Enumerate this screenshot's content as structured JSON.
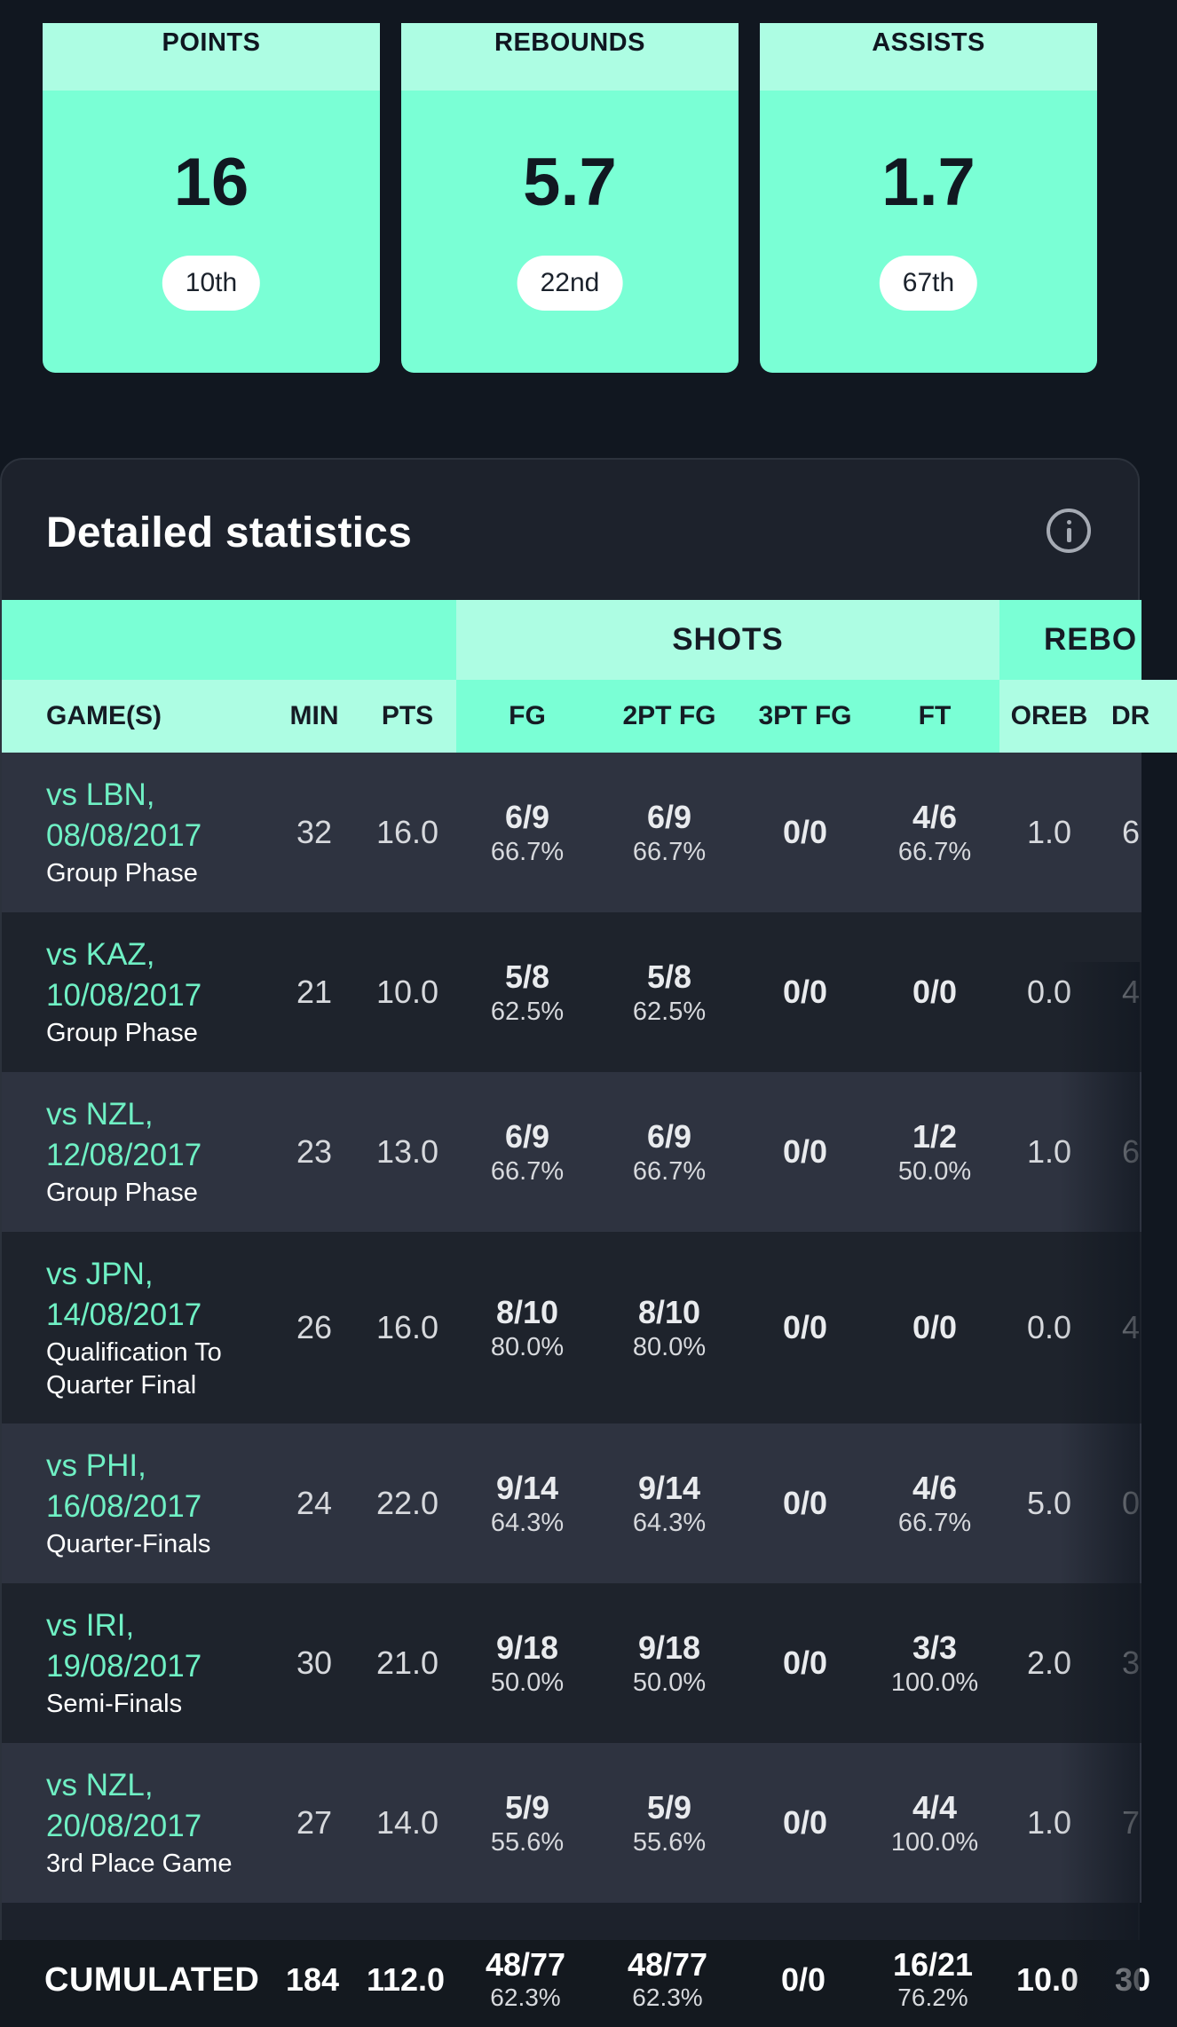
{
  "cards": [
    {
      "label": "POINTS",
      "value": "16",
      "rank": "10th"
    },
    {
      "label": "REBOUNDS",
      "value": "5.7",
      "rank": "22nd"
    },
    {
      "label": "ASSISTS",
      "value": "1.7",
      "rank": "67th"
    }
  ],
  "panel": {
    "title": "Detailed statistics",
    "info_icon": "info-circle-icon"
  },
  "table": {
    "groups": {
      "shots": "SHOTS",
      "rebounds": "REBO"
    },
    "headers": {
      "game": "GAME(S)",
      "min": "MIN",
      "pts": "PTS",
      "fg": "FG",
      "fg2": "2PT FG",
      "fg3": "3PT FG",
      "ft": "FT",
      "oreb": "OREB",
      "dreb": "DR"
    },
    "rows": [
      {
        "opp": "vs LBN,",
        "date": "08/08/2017",
        "phase": "Group Phase",
        "phase2": "",
        "min": "32",
        "pts": "16.0",
        "fg": "6/9",
        "fg_pct": "66.7%",
        "fg2": "6/9",
        "fg2_pct": "66.7%",
        "fg3": "0/0",
        "ft": "4/6",
        "ft_pct": "66.7%",
        "oreb": "1.0",
        "dreb": "6"
      },
      {
        "opp": "vs KAZ,",
        "date": "10/08/2017",
        "phase": "Group Phase",
        "phase2": "",
        "min": "21",
        "pts": "10.0",
        "fg": "5/8",
        "fg_pct": "62.5%",
        "fg2": "5/8",
        "fg2_pct": "62.5%",
        "fg3": "0/0",
        "ft": "0/0",
        "ft_pct": "",
        "oreb": "0.0",
        "dreb": "4"
      },
      {
        "opp": "vs NZL,",
        "date": "12/08/2017",
        "phase": "Group Phase",
        "phase2": "",
        "min": "23",
        "pts": "13.0",
        "fg": "6/9",
        "fg_pct": "66.7%",
        "fg2": "6/9",
        "fg2_pct": "66.7%",
        "fg3": "0/0",
        "ft": "1/2",
        "ft_pct": "50.0%",
        "oreb": "1.0",
        "dreb": "6"
      },
      {
        "opp": "vs JPN,",
        "date": "14/08/2017",
        "phase": "Qualification To",
        "phase2": "Quarter Final",
        "min": "26",
        "pts": "16.0",
        "fg": "8/10",
        "fg_pct": "80.0%",
        "fg2": "8/10",
        "fg2_pct": "80.0%",
        "fg3": "0/0",
        "ft": "0/0",
        "ft_pct": "",
        "oreb": "0.0",
        "dreb": "4"
      },
      {
        "opp": "vs PHI,",
        "date": "16/08/2017",
        "phase": "Quarter-Finals",
        "phase2": "",
        "min": "24",
        "pts": "22.0",
        "fg": "9/14",
        "fg_pct": "64.3%",
        "fg2": "9/14",
        "fg2_pct": "64.3%",
        "fg3": "0/0",
        "ft": "4/6",
        "ft_pct": "66.7%",
        "oreb": "5.0",
        "dreb": "0"
      },
      {
        "opp": "vs IRI,",
        "date": "19/08/2017",
        "phase": "Semi-Finals",
        "phase2": "",
        "min": "30",
        "pts": "21.0",
        "fg": "9/18",
        "fg_pct": "50.0%",
        "fg2": "9/18",
        "fg2_pct": "50.0%",
        "fg3": "0/0",
        "ft": "3/3",
        "ft_pct": "100.0%",
        "oreb": "2.0",
        "dreb": "3"
      },
      {
        "opp": "vs NZL,",
        "date": "20/08/2017",
        "phase": "3rd Place Game",
        "phase2": "",
        "min": "27",
        "pts": "14.0",
        "fg": "5/9",
        "fg_pct": "55.6%",
        "fg2": "5/9",
        "fg2_pct": "55.6%",
        "fg3": "0/0",
        "ft": "4/4",
        "ft_pct": "100.0%",
        "oreb": "1.0",
        "dreb": "7"
      }
    ],
    "total": {
      "label": "CUMULATED",
      "min": "184",
      "pts": "112.0",
      "fg": "48/77",
      "fg_pct": "62.3%",
      "fg2": "48/77",
      "fg2_pct": "62.3%",
      "fg3": "0/0",
      "ft": "16/21",
      "ft_pct": "76.2%",
      "oreb": "10.0",
      "dreb": "30"
    }
  },
  "colors": {
    "accent": "#7affd5",
    "accent_light": "#adfde3",
    "link": "#6ff0c4",
    "background": "#111720",
    "panel": "#1d222c"
  }
}
